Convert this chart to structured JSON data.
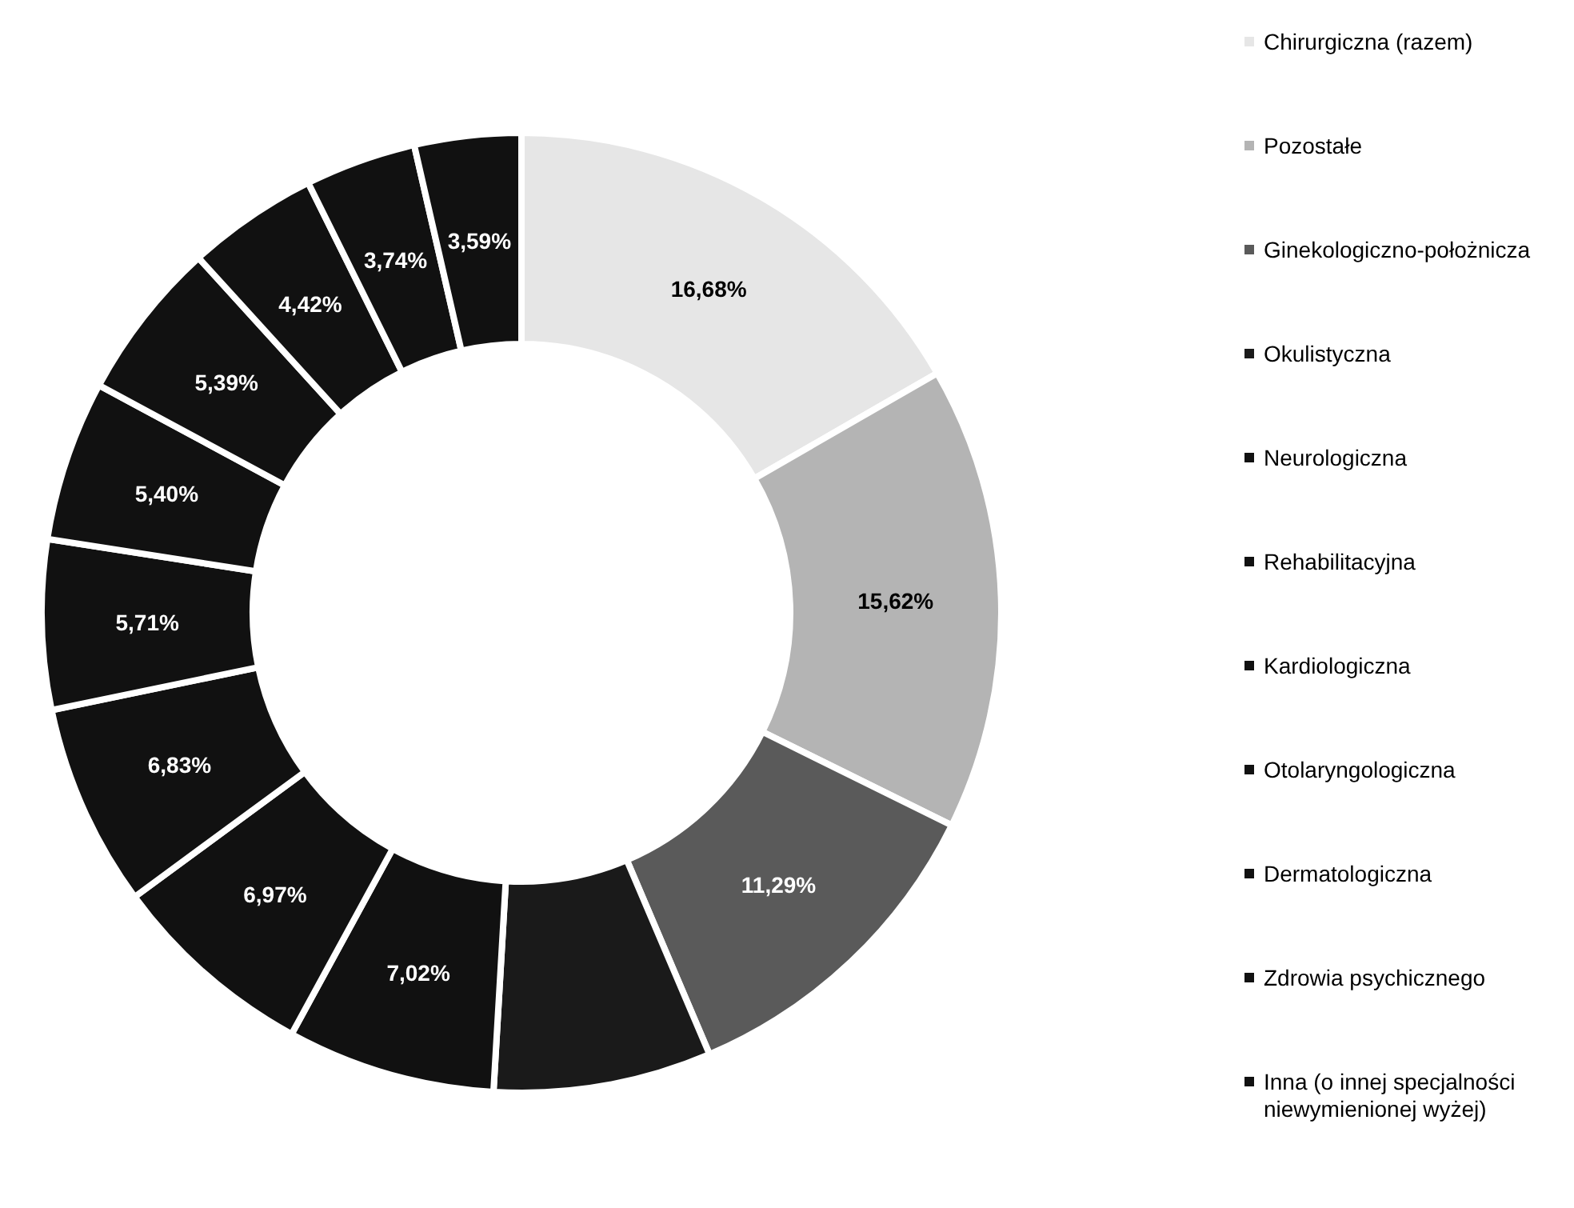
{
  "chart_data": {
    "type": "donut",
    "categories": [
      "Chirurgiczna (razem)",
      "Pozostałe",
      "Ginekologiczno-położnicza",
      "Okulistyczna",
      "Neurologiczna",
      "Rehabilitacyjna",
      "Kardiologiczna",
      "Otolaryngologiczna",
      "Dermatologiczna",
      "Zdrowia psychicznego",
      "Inna (o innej specjalności niewymienionej wyżej)",
      null,
      null
    ],
    "values": [
      16.68,
      15.62,
      11.29,
      7.34,
      7.02,
      6.97,
      6.83,
      5.71,
      5.4,
      5.39,
      4.42,
      3.74,
      3.59
    ],
    "value_labels": [
      "16,68%",
      "15,62%",
      "11,29%",
      null,
      "7,02%",
      "6,97%",
      "6,83%",
      "5,71%",
      "5,40%",
      "5,39%",
      "4,42%",
      "3,74%",
      "3,59%"
    ],
    "colors": [
      "#e6e6e6",
      "#b4b4b4",
      "#5a5a5a",
      "#1a1a1a",
      "#111111",
      "#111111",
      "#111111",
      "#111111",
      "#111111",
      "#111111",
      "#111111",
      "#111111",
      "#111111"
    ],
    "legend": "right"
  }
}
